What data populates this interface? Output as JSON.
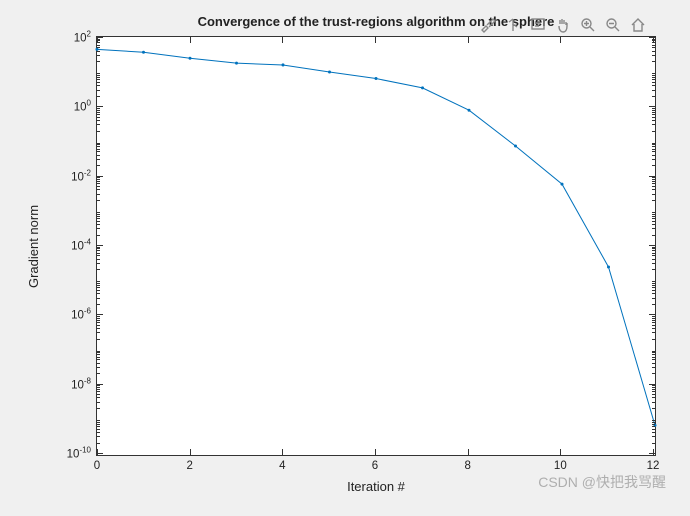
{
  "chart": {
    "type": "line",
    "title": "Convergence of the trust-regions algorithm on the sphere",
    "xlabel": "Iteration #",
    "ylabel": "Gradient norm",
    "x": [
      0,
      1,
      2,
      3,
      4,
      5,
      6,
      7,
      8,
      9,
      10,
      11,
      12
    ],
    "y": [
      45,
      37,
      25,
      18,
      16,
      10,
      6.5,
      3.5,
      0.8,
      0.075,
      0.006,
      2.5e-05,
      7e-10
    ],
    "xlim": [
      0,
      12
    ],
    "ylim": [
      1e-10,
      100.0
    ],
    "yscale": "log",
    "xtick_step": 2,
    "ytick_decades": [
      -10,
      -8,
      -6,
      -4,
      -2,
      0,
      2
    ],
    "line_color": "#0072bd",
    "line_width": 1.0,
    "marker": "point",
    "marker_size": 3,
    "background_color": "#ffffff",
    "figure_background": "#f0f0f0",
    "axis_color": "#333333",
    "label_fontsize": 13,
    "title_fontsize": 13,
    "tick_fontsize": 11.5
  },
  "toolbar": {
    "tools": [
      "brush",
      "rotate",
      "datatips",
      "pan",
      "zoom-in",
      "zoom-out",
      "home"
    ]
  },
  "watermark": "CSDN @快把我骂醒"
}
